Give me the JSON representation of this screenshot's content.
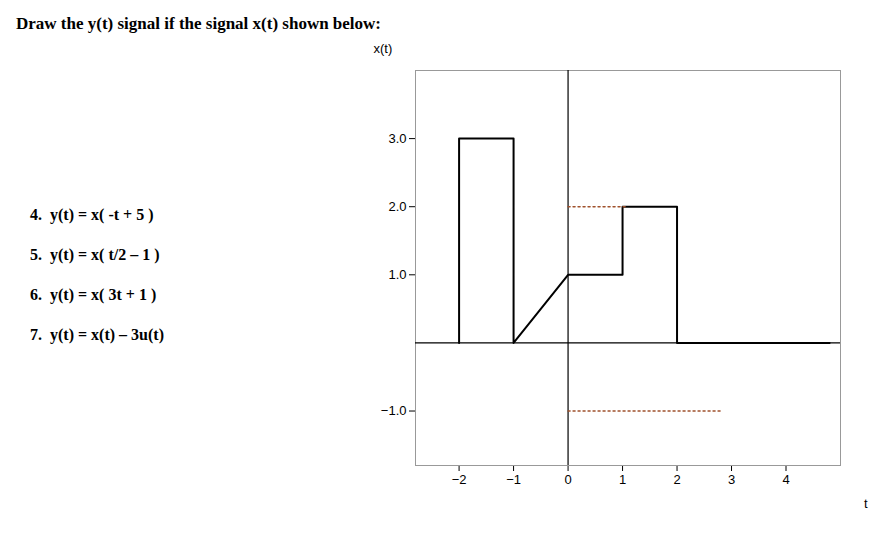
{
  "chart_data": {
    "type": "line",
    "title": "Draw the y(t) signal if the signal x(t) shown below:",
    "xlabel": "t",
    "ylabel": "x(t)",
    "xlim": [
      -2.8,
      5.0
    ],
    "ylim": [
      -1.8,
      4.0
    ],
    "xticks": [
      -2,
      -1,
      0,
      1,
      2,
      3,
      4
    ],
    "yticks": [
      -1,
      1,
      2,
      3
    ],
    "series": [
      {
        "color": "#000000",
        "line_style": "solid",
        "x": [
          -2,
          -2,
          -1,
          -1,
          0,
          1,
          1,
          2,
          2,
          4.8
        ],
        "values": [
          0,
          3,
          3,
          0,
          1,
          1,
          2,
          2,
          0,
          0
        ]
      },
      {
        "color": "#a0522d",
        "line_style": "dotted",
        "x": [
          0,
          1.05
        ],
        "values": [
          2,
          2
        ]
      },
      {
        "color": "#a0522d",
        "line_style": "dotted",
        "x": [
          0,
          2.8
        ],
        "values": [
          -1,
          -1
        ]
      }
    ],
    "annotations": [
      "4.  y(t) = x( -t + 5 )",
      "5.  y(t) = x( t/2 – 1 )",
      "6.  y(t) = x( 3t + 1 )",
      "7.  y(t) = x(t) – 3u(t)"
    ]
  }
}
